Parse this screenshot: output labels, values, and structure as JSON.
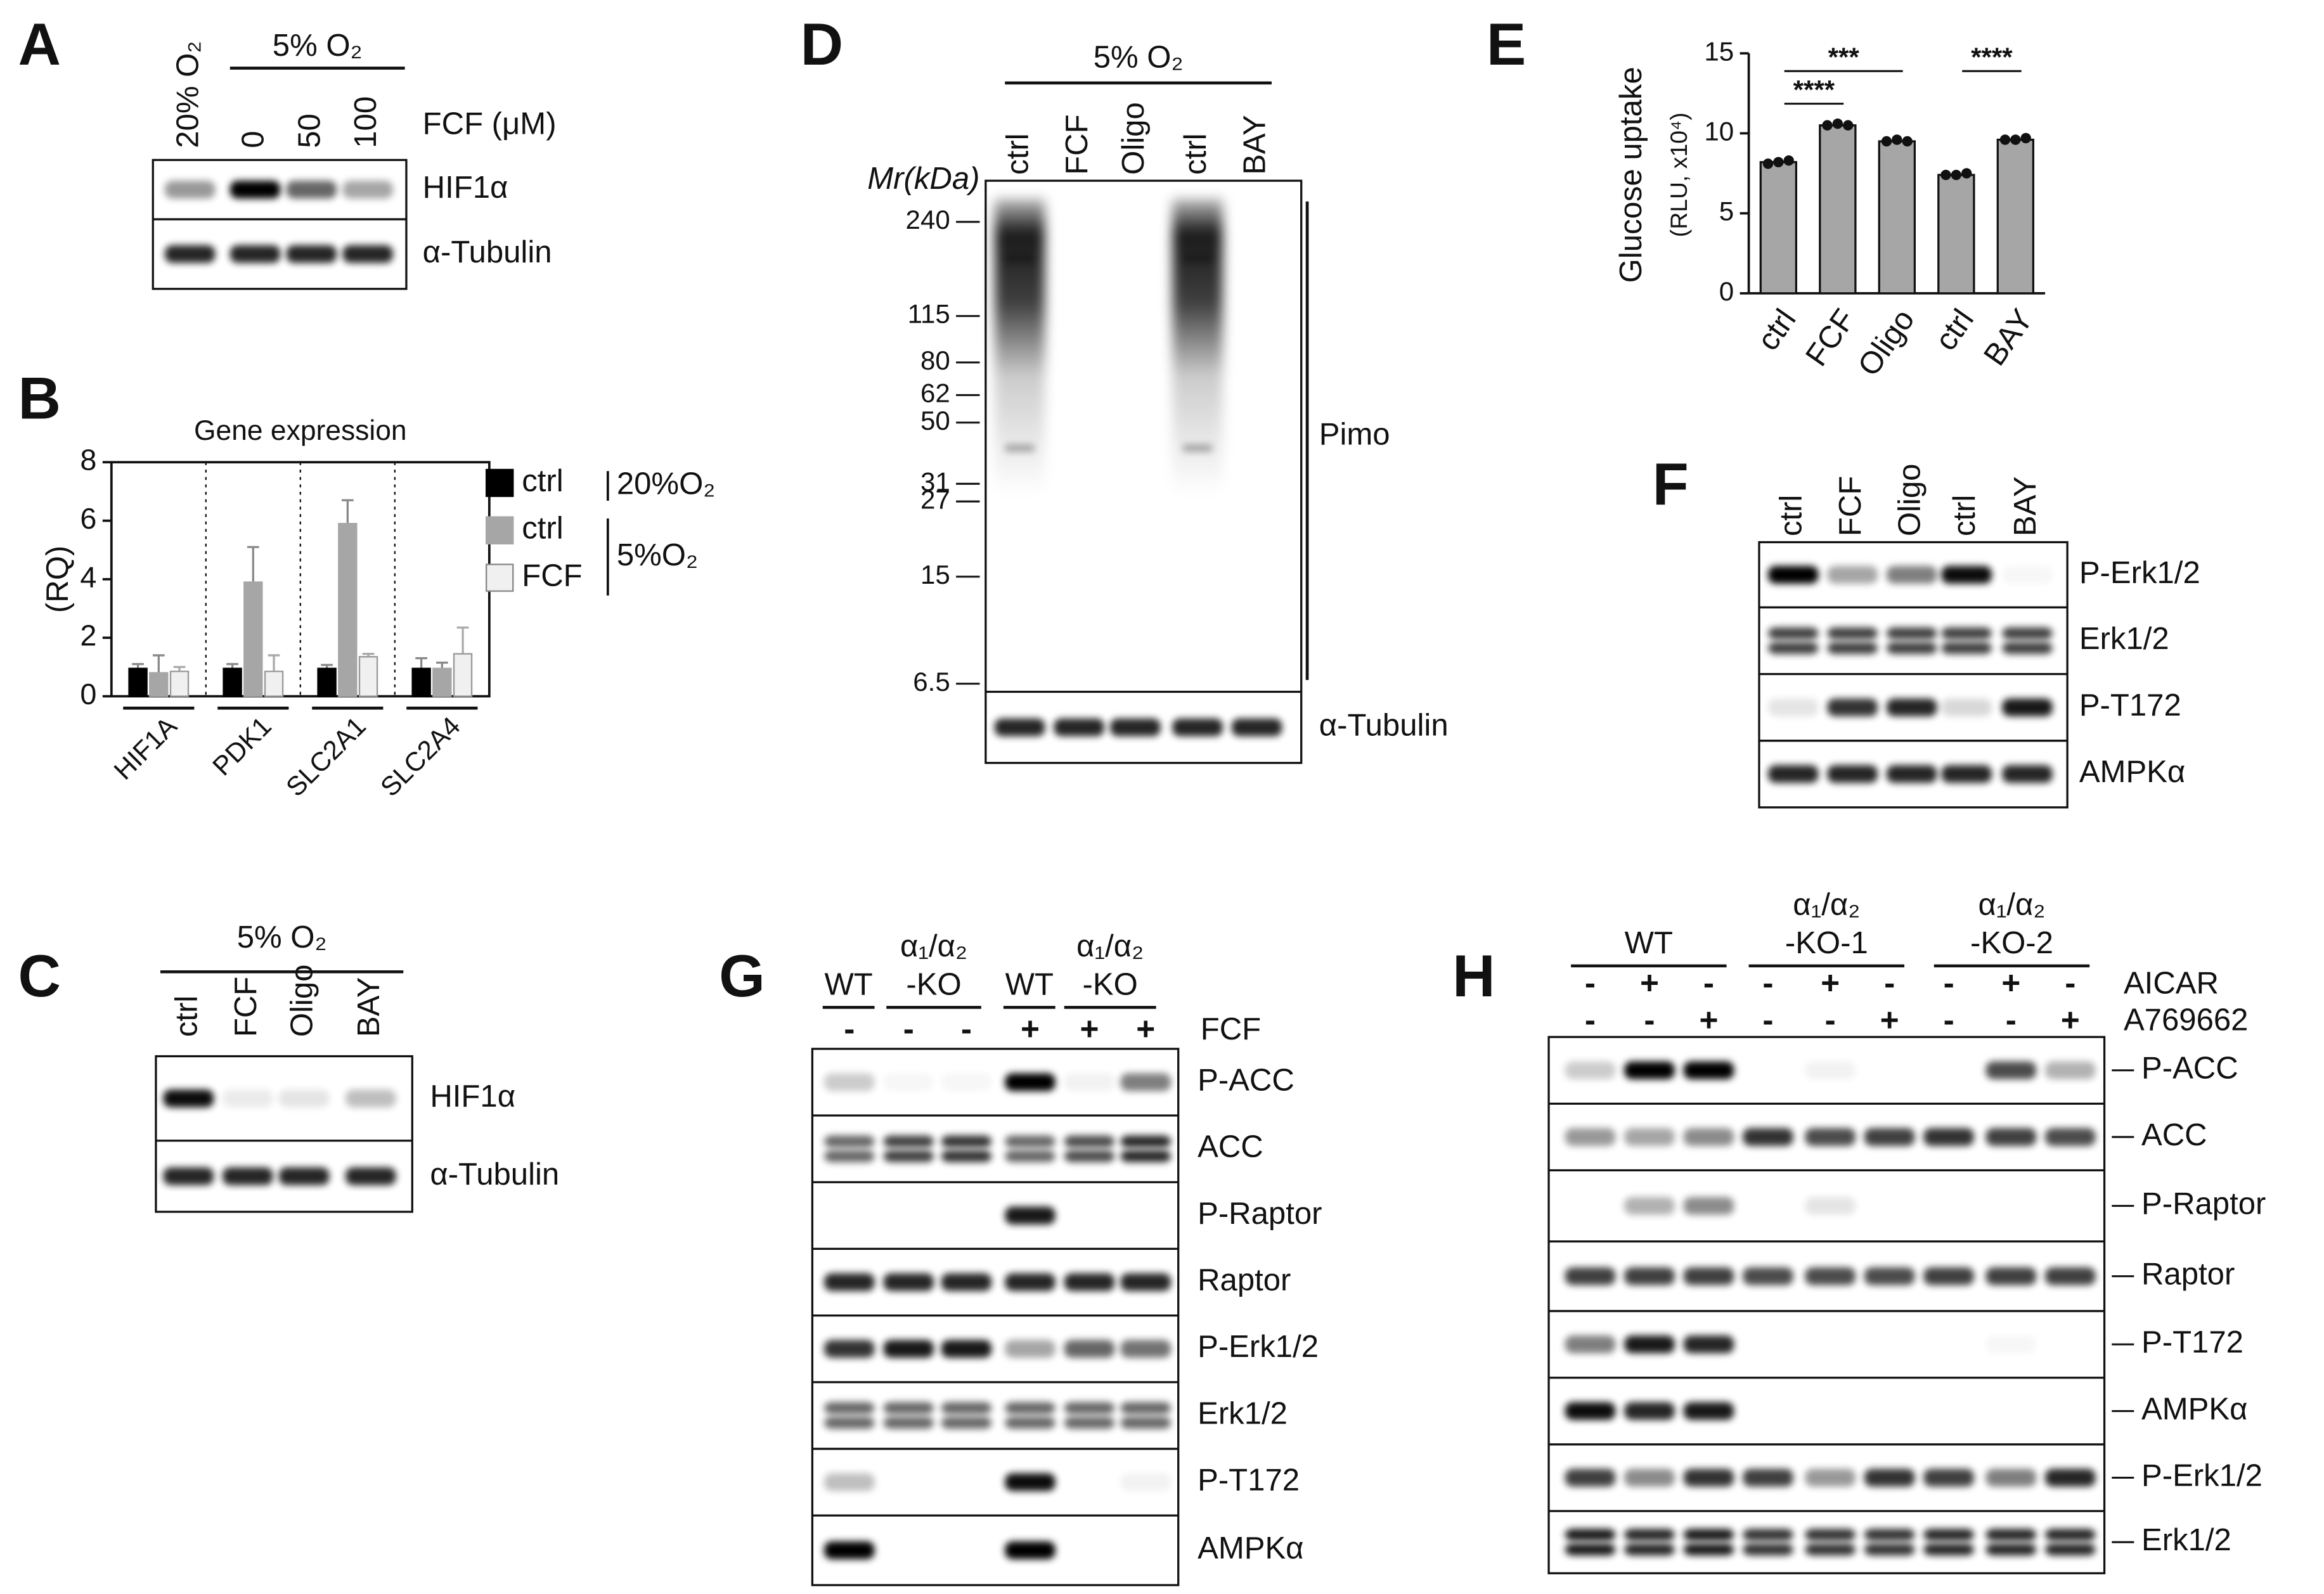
{
  "chart_data": [
    {
      "type": "bar",
      "panel": "B",
      "title": "Gene expression",
      "y_label": "(RQ)",
      "categories": [
        "HIF1A",
        "PDK1",
        "SLC2A1",
        "SLC2A4"
      ],
      "series": [
        {
          "name": "ctrl",
          "color": "#000000",
          "values": [
            0.95,
            0.95,
            0.95,
            0.95
          ],
          "errors": [
            0.15,
            0.15,
            0.12,
            0.35
          ]
        },
        {
          "name": "ctrl",
          "color": "#a6a6a6",
          "values": [
            0.8,
            3.9,
            5.9,
            0.95
          ],
          "errors": [
            0.6,
            1.2,
            0.8,
            0.2
          ]
        },
        {
          "name": "FCF",
          "color": "#f0f0f0",
          "values": [
            0.85,
            0.85,
            1.35,
            1.45
          ],
          "errors": [
            0.15,
            0.55,
            0.1,
            0.9
          ]
        }
      ],
      "legend_groups": [
        "20%O₂",
        "5%O₂"
      ],
      "ylim": [
        0,
        8
      ],
      "yticks": [
        0,
        2,
        4,
        6,
        8
      ]
    },
    {
      "type": "bar",
      "panel": "E",
      "y_label": "Glucose uptake",
      "y_sublabel": "(RLU, x10⁴)",
      "categories": [
        "ctrl",
        "FCF",
        "Oligo",
        "ctrl",
        "BAY"
      ],
      "values": [
        8.2,
        10.5,
        9.5,
        7.4,
        9.6
      ],
      "points": [
        [
          8.1,
          8.2,
          8.3
        ],
        [
          10.5,
          10.6,
          10.5
        ],
        [
          9.5,
          9.6,
          9.5
        ],
        [
          7.4,
          7.4,
          7.5
        ],
        [
          9.6,
          9.6,
          9.7
        ]
      ],
      "color": "#a6a6a6",
      "significance": [
        "****",
        "***",
        "****"
      ],
      "ylim": [
        0,
        15
      ],
      "yticks": [
        0,
        5,
        10,
        15
      ]
    }
  ],
  "blots": [
    {
      "panel": "A",
      "group": "5% O₂",
      "lanes": [
        "20% O₂",
        "0",
        "50",
        "100"
      ],
      "lane_axis_label": "FCF (μM)",
      "rows": [
        "HIF1α",
        "α-Tubulin"
      ]
    },
    {
      "panel": "C",
      "group": "5% O₂",
      "lanes": [
        "ctrl",
        "FCF",
        "Oligo",
        "BAY"
      ],
      "rows": [
        "HIF1α",
        "α-Tubulin"
      ]
    },
    {
      "panel": "D",
      "group": "5% O₂",
      "lanes": [
        "ctrl",
        "FCF",
        "Oligo",
        "ctrl",
        "BAY"
      ],
      "rows": [
        "Pimo",
        "α-Tubulin"
      ],
      "marker_label": "Mr(kDa)",
      "log_scale": true,
      "ylim": [
        6.1,
        331
      ],
      "yticks": [
        240,
        115,
        80,
        62,
        50,
        31,
        27,
        15,
        6.5
      ]
    },
    {
      "panel": "F",
      "lanes": [
        "ctrl",
        "FCF",
        "Oligo",
        "ctrl",
        "BAY"
      ],
      "rows": [
        "P-Erk1/2",
        "Erk1/2",
        "P-T172",
        "AMPKα"
      ]
    },
    {
      "panel": "G",
      "groups": [
        [
          "WT"
        ],
        [
          "α₁/α₂",
          "-KO"
        ],
        [
          "WT"
        ],
        [
          "α₁/α₂",
          "-KO"
        ]
      ],
      "treatments": [
        {
          "name": "FCF",
          "signs": [
            "-",
            "-",
            "-",
            "+",
            "+",
            "+"
          ]
        }
      ],
      "rows": [
        "P-ACC",
        "ACC",
        "P-Raptor",
        "Raptor",
        "P-Erk1/2",
        "Erk1/2",
        "P-T172",
        "AMPKα"
      ]
    },
    {
      "panel": "H",
      "groups": [
        [
          "WT"
        ],
        [
          "α₁/α₂",
          "-KO-1"
        ],
        [
          "α₁/α₂",
          "-KO-2"
        ]
      ],
      "treatments": [
        {
          "name": "AICAR",
          "signs": [
            "-",
            "+",
            "-",
            "-",
            "+",
            "-",
            "-",
            "+",
            "-"
          ]
        },
        {
          "name": "A769662",
          "signs": [
            "-",
            "-",
            "+",
            "-",
            "-",
            "+",
            "-",
            "-",
            "+"
          ]
        }
      ],
      "rows": [
        "P-ACC",
        "ACC",
        "P-Raptor",
        "Raptor",
        "P-T172",
        "AMPKα",
        "P-Erk1/2",
        "Erk1/2"
      ]
    }
  ]
}
